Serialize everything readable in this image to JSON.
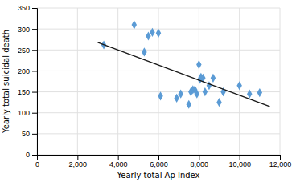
{
  "chart_data": {
    "type": "scatter",
    "xlabel": "Yearly total Ap Index",
    "ylabel": "Yearly total suicidal death",
    "series": [
      {
        "type": "scatter",
        "color": "#5b9bd5",
        "marker": "diamond",
        "x": [
          3300,
          4800,
          5300,
          5500,
          5700,
          6000,
          6100,
          6900,
          7100,
          7500,
          7600,
          7700,
          7800,
          7900,
          8000,
          8050,
          8100,
          8200,
          8300,
          8500,
          8700,
          9000,
          9200,
          10000,
          10500,
          11000
        ],
        "values": [
          262,
          310,
          245,
          283,
          292,
          290,
          140,
          135,
          145,
          120,
          150,
          155,
          155,
          145,
          215,
          180,
          185,
          183,
          150,
          165,
          183,
          125,
          150,
          165,
          145,
          148
        ]
      },
      {
        "type": "line",
        "color": "#1a1a1a",
        "line_style": "solid",
        "x": [
          3000,
          11500
        ],
        "values": [
          268,
          115
        ]
      }
    ],
    "xlim": [
      0,
      12000
    ],
    "ylim": [
      0,
      350
    ],
    "xticks": [
      0,
      {
        "value": 2000,
        "label": "2,000"
      },
      {
        "value": 4000,
        "label": "4,000"
      },
      {
        "value": 6000,
        "label": "6,000"
      },
      {
        "value": 8000,
        "label": "8,000"
      },
      {
        "value": 10000,
        "label": "10,000"
      },
      {
        "value": 12000,
        "label": "12,000"
      }
    ],
    "yticks": [
      0,
      50,
      100,
      150,
      200,
      250,
      300,
      350
    ],
    "grid": true
  }
}
